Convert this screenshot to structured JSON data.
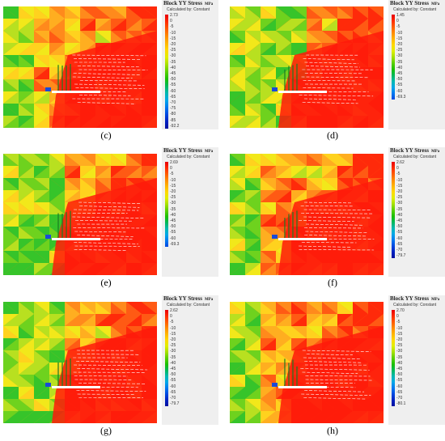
{
  "legend": {
    "title": "Block YY Stress",
    "unit": "MPa",
    "subtitle": "Calculated by: Constant",
    "scale": [
      "0",
      "-5",
      "-10",
      "-15",
      "-20",
      "-25",
      "-30",
      "-35",
      "-40",
      "-45",
      "-50",
      "-55",
      "-60",
      "-65",
      "-70",
      "-75",
      "-80",
      "-85",
      "-90"
    ]
  },
  "panels": [
    {
      "label": "(c)",
      "max": "2.73",
      "min": "-92.2",
      "ticks": 19,
      "bg": "#ff8a1c",
      "redShare": 0.55,
      "greenShare": 0.12
    },
    {
      "label": "(d)",
      "max": "1.45",
      "min": "-69.3",
      "ticks": 14,
      "bg": "#ff3a10",
      "redShare": 0.6,
      "greenShare": 0.45
    },
    {
      "label": "(e)",
      "max": "2.69",
      "min": "-69.3",
      "ticks": 14,
      "bg": "#ff7a16",
      "redShare": 0.55,
      "greenShare": 0.4
    },
    {
      "label": "(f)",
      "max": "2.62",
      "min": "-79.7",
      "ticks": 16,
      "bg": "#ff7a16",
      "redShare": 0.55,
      "greenShare": 0.2
    },
    {
      "label": "(g)",
      "max": "2.62",
      "min": "-79.7",
      "ticks": 16,
      "bg": "#ffae20",
      "redShare": 0.55,
      "greenShare": 0.35
    },
    {
      "label": "(h)",
      "max": "2.70",
      "min": "-80.1",
      "ticks": 16,
      "bg": "#ff8a1c",
      "redShare": 0.55,
      "greenShare": 0.2
    }
  ]
}
